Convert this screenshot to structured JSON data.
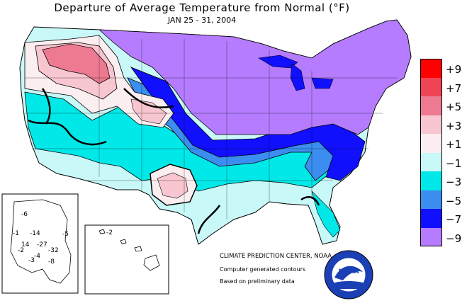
{
  "title": "Departure of Average Temperature from Normal (°F)",
  "period": "JAN 25 - 31, 2004",
  "legend": {
    "items": [
      {
        "label": "+9",
        "color": "#ff0000"
      },
      {
        "label": "+7",
        "color": "#ee4455"
      },
      {
        "label": "+5",
        "color": "#ee7a92"
      },
      {
        "label": "+3",
        "color": "#f8c6d0"
      },
      {
        "label": "+1",
        "color": "#fbeef0"
      },
      {
        "label": "−1",
        "color": "#c8f8f8"
      },
      {
        "label": "−3",
        "color": "#00e8e8"
      },
      {
        "label": "−5",
        "color": "#3b8ef0"
      },
      {
        "label": "−7",
        "color": "#1010ff"
      },
      {
        "label": "−9",
        "color": "#b57cff"
      }
    ]
  },
  "credits": {
    "line1": "CLIMATE PREDICTION CENTER, NOAA",
    "line2": "Computer generated contours",
    "line3": "Based on preliminary data"
  },
  "logo_text": "NOAA",
  "alaska_labels": [
    "-1",
    "-14",
    "-27",
    "-32",
    "-2",
    "14",
    "-4",
    "-6",
    "-5",
    "-8",
    "-3"
  ],
  "hawaii_labels": [
    "-2"
  ],
  "colors": {
    "cold_purple": "#b57cff",
    "cold_blue": "#1010ff",
    "cold_medium": "#3b8ef0",
    "cold_cyan": "#00e8e8",
    "cool_pale": "#c8f8f8",
    "warm_pale": "#fbeef0",
    "warm_pink": "#f8c6d0",
    "warm_rose": "#ee7a92"
  }
}
